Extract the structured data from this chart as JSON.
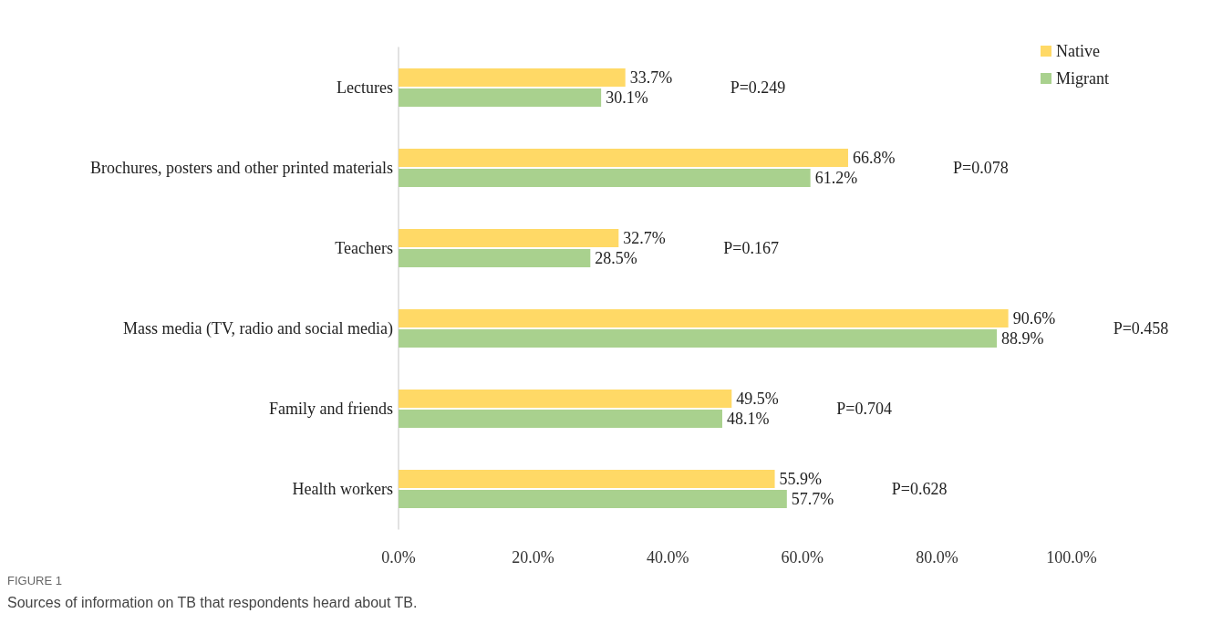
{
  "chart_data": {
    "type": "bar",
    "orientation": "horizontal",
    "categories": [
      "Lectures",
      "Brochures, posters and other printed materials",
      "Teachers",
      "Mass media (TV, radio and social media)",
      "Family and friends",
      "Health workers"
    ],
    "series": [
      {
        "name": "Native",
        "color": "#ffd966",
        "values": [
          33.7,
          66.8,
          32.7,
          90.6,
          49.5,
          55.9
        ],
        "value_labels": [
          "33.7%",
          "66.8%",
          "32.7%",
          "90.6%",
          "49.5%",
          "55.9%"
        ]
      },
      {
        "name": "Migrant",
        "color": "#a9d18e",
        "values": [
          30.1,
          61.2,
          28.5,
          88.9,
          48.1,
          57.7
        ],
        "value_labels": [
          "30.1%",
          "61.2%",
          "28.5%",
          "88.9%",
          "48.1%",
          "57.7%"
        ]
      }
    ],
    "xlim": [
      0,
      100
    ],
    "xticks": [
      {
        "value": 0,
        "label": "0.0%"
      },
      {
        "value": 20,
        "label": "20.0%"
      },
      {
        "value": 40,
        "label": "40.0%"
      },
      {
        "value": 60,
        "label": "60.0%"
      },
      {
        "value": 80,
        "label": "80.0%"
      },
      {
        "value": 100,
        "label": "100.0%"
      }
    ],
    "grid": false,
    "legend": "top right",
    "annotations": [
      "P=0.249",
      "P=0.078",
      "P=0.167",
      "P=0.458",
      "P=0.704",
      "P=0.628",
      "FIGURE 1",
      "Sources of information on TB that respondents heard about TB."
    ]
  }
}
